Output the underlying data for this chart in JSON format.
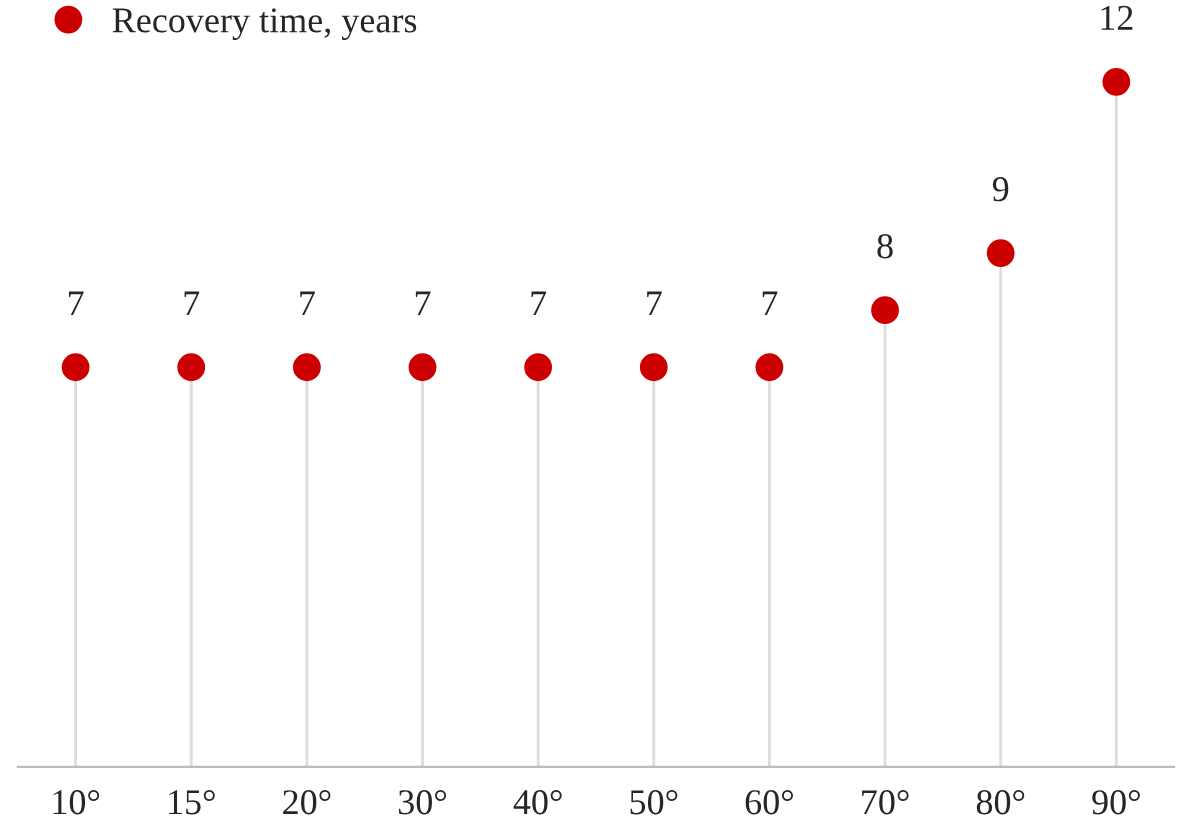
{
  "chart_data": {
    "type": "lollipop",
    "categories": [
      "10°",
      "15°",
      "20°",
      "30°",
      "40°",
      "50°",
      "60°",
      "70°",
      "80°",
      "90°"
    ],
    "series": [
      {
        "name": "Recovery time, years",
        "color": "#cc0000",
        "values": [
          7,
          7,
          7,
          7,
          7,
          7,
          7,
          8,
          9,
          12
        ]
      }
    ],
    "data_labels": true,
    "legend": "top left",
    "marker": "circle",
    "grid": false
  }
}
